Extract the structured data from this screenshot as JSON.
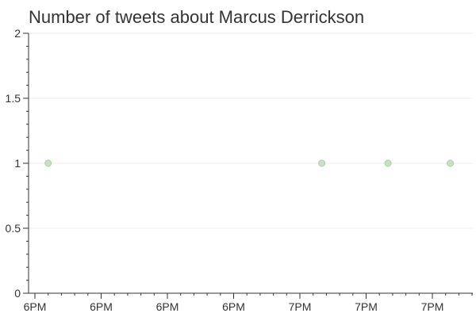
{
  "title": "Number of tweets about Marcus Derrickson",
  "chart_data": {
    "type": "scatter",
    "title": "Number of tweets about Marcus Derrickson",
    "xlabel": "",
    "ylabel": "",
    "xlim": [
      0,
      6.7
    ],
    "ylim": [
      0,
      2
    ],
    "x_ticks": [
      0,
      1,
      2,
      3,
      4,
      5,
      6
    ],
    "x_tick_labels": [
      "6PM",
      "6PM",
      "6PM",
      "6PM",
      "7PM",
      "7PM",
      "7PM"
    ],
    "y_ticks": [
      0,
      0.5,
      1,
      1.5,
      2
    ],
    "y_tick_labels": [
      "0",
      "0.5",
      "1",
      "1.5",
      "2"
    ],
    "grid": true,
    "legend": "none",
    "series": [
      {
        "x": [
          0.2,
          4.33,
          5.33,
          6.27
        ],
        "y": [
          1,
          1,
          1,
          1
        ],
        "color": "#a9cfa3"
      }
    ]
  }
}
